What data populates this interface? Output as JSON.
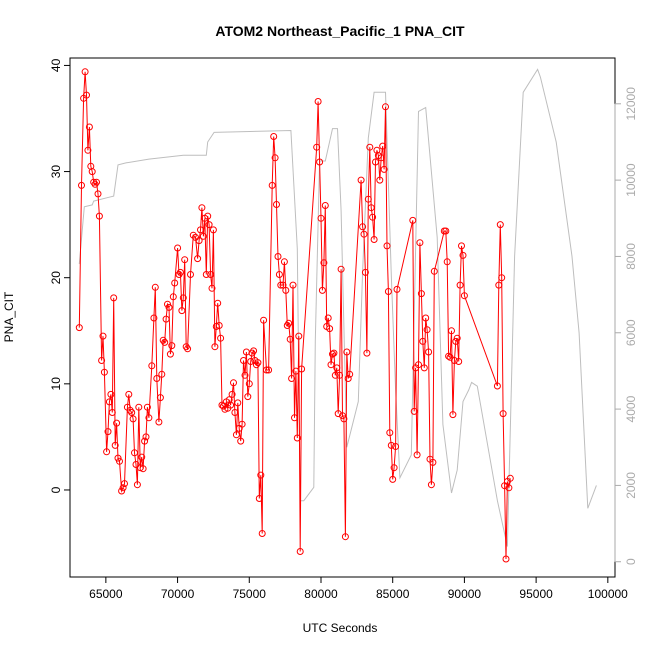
{
  "chart_data": {
    "type": "line",
    "title": "ATOM2 Northeast_Pacific_1 PNA_CIT",
    "xlabel": "UTC Seconds",
    "ylabel": "PNA_CIT",
    "xlim": [
      62500,
      100500
    ],
    "ylim": [
      -8.2,
      40.7
    ],
    "y2lim": [
      -400,
      13200
    ],
    "x_ticks": [
      65000,
      70000,
      75000,
      80000,
      85000,
      90000,
      95000,
      100000
    ],
    "x_tick_labels": [
      "65000",
      "70000",
      "75000",
      "80000",
      "85000",
      "90000",
      "95000",
      "100000"
    ],
    "y_ticks": [
      0,
      10,
      20,
      30,
      40
    ],
    "y_tick_labels": [
      "0",
      "10",
      "20",
      "30",
      "40"
    ],
    "y2_ticks": [
      0,
      2000,
      4000,
      6000,
      8000,
      10000,
      12000
    ],
    "y2_tick_labels": [
      "0",
      "2000",
      "4000",
      "6000",
      "8000",
      "10000",
      "12000"
    ],
    "colors": {
      "primary": "#ff0000",
      "secondary": "#bebebe"
    },
    "series": [
      {
        "axis": "left",
        "style": "line-points",
        "points": [
          [
            63150,
            15.3
          ],
          [
            63300,
            28.7
          ],
          [
            63450,
            36.9
          ],
          [
            63550,
            39.4
          ],
          [
            63650,
            37.2
          ],
          [
            63750,
            32.0
          ],
          [
            63850,
            34.2
          ],
          [
            63950,
            30.5
          ],
          [
            64050,
            30.0
          ],
          [
            64150,
            29.0
          ],
          [
            64250,
            28.8
          ],
          [
            64350,
            29.0
          ],
          [
            64450,
            27.9
          ],
          [
            64550,
            25.8
          ],
          [
            64700,
            12.2
          ],
          [
            64800,
            14.5
          ],
          [
            64900,
            11.1
          ],
          [
            65050,
            3.6
          ],
          [
            65150,
            5.5
          ],
          [
            65250,
            8.3
          ],
          [
            65350,
            9.0
          ],
          [
            65450,
            7.3
          ],
          [
            65550,
            18.1
          ],
          [
            65650,
            4.2
          ],
          [
            65750,
            6.3
          ],
          [
            65850,
            3.0
          ],
          [
            65950,
            2.7
          ],
          [
            66100,
            -0.1
          ],
          [
            66200,
            0.2
          ],
          [
            66300,
            0.6
          ],
          [
            66500,
            7.8
          ],
          [
            66600,
            9.0
          ],
          [
            66700,
            7.5
          ],
          [
            66800,
            7.3
          ],
          [
            66900,
            6.7
          ],
          [
            67000,
            3.5
          ],
          [
            67100,
            2.4
          ],
          [
            67200,
            0.5
          ],
          [
            67300,
            7.8
          ],
          [
            67400,
            2.1
          ],
          [
            67500,
            3.1
          ],
          [
            67600,
            2.0
          ],
          [
            67700,
            4.6
          ],
          [
            67800,
            5.0
          ],
          [
            67900,
            7.8
          ],
          [
            68000,
            6.8
          ],
          [
            68200,
            11.7
          ],
          [
            68350,
            16.2
          ],
          [
            68450,
            19.1
          ],
          [
            68550,
            10.5
          ],
          [
            68700,
            6.4
          ],
          [
            68800,
            8.7
          ],
          [
            68900,
            10.9
          ],
          [
            69000,
            14.1
          ],
          [
            69100,
            13.9
          ],
          [
            69200,
            16.1
          ],
          [
            69300,
            17.5
          ],
          [
            69400,
            17.2
          ],
          [
            69500,
            12.8
          ],
          [
            69600,
            13.6
          ],
          [
            69700,
            18.2
          ],
          [
            69800,
            19.5
          ],
          [
            70000,
            22.8
          ],
          [
            70100,
            20.3
          ],
          [
            70200,
            20.5
          ],
          [
            70300,
            16.9
          ],
          [
            70400,
            18.1
          ],
          [
            70500,
            21.7
          ],
          [
            70600,
            13.5
          ],
          [
            70700,
            13.3
          ],
          [
            70900,
            20.3
          ],
          [
            71100,
            24.0
          ],
          [
            71250,
            23.8
          ],
          [
            71400,
            21.8
          ],
          [
            71500,
            23.5
          ],
          [
            71600,
            24.5
          ],
          [
            71700,
            26.6
          ],
          [
            71800,
            23.9
          ],
          [
            71900,
            25.6
          ],
          [
            72000,
            20.3
          ],
          [
            72100,
            25.8
          ],
          [
            72200,
            25.0
          ],
          [
            72300,
            20.3
          ],
          [
            72400,
            19.0
          ],
          [
            72500,
            24.5
          ],
          [
            72600,
            13.5
          ],
          [
            72700,
            15.4
          ],
          [
            72800,
            17.6
          ],
          [
            72900,
            15.5
          ],
          [
            73000,
            14.3
          ],
          [
            73100,
            8.0
          ],
          [
            73200,
            7.9
          ],
          [
            73300,
            7.6
          ],
          [
            73400,
            8.3
          ],
          [
            73500,
            7.7
          ],
          [
            73600,
            8.5
          ],
          [
            73700,
            8.0
          ],
          [
            73800,
            9.0
          ],
          [
            73900,
            10.1
          ],
          [
            74000,
            7.3
          ],
          [
            74100,
            5.2
          ],
          [
            74200,
            8.2
          ],
          [
            74300,
            5.8
          ],
          [
            74400,
            4.6
          ],
          [
            74500,
            6.2
          ],
          [
            74600,
            12.2
          ],
          [
            74700,
            10.8
          ],
          [
            74800,
            13.0
          ],
          [
            74900,
            8.8
          ],
          [
            75000,
            10.0
          ],
          [
            75100,
            12.1
          ],
          [
            75200,
            12.9
          ],
          [
            75300,
            13.1
          ],
          [
            75400,
            12.2
          ],
          [
            75500,
            11.8
          ],
          [
            75600,
            12.0
          ],
          [
            75700,
            -0.8
          ],
          [
            75800,
            1.4
          ],
          [
            75900,
            -4.1
          ],
          [
            76000,
            16.0
          ],
          [
            76200,
            11.3
          ],
          [
            76350,
            11.3
          ],
          [
            76600,
            28.7
          ],
          [
            76700,
            33.3
          ],
          [
            76800,
            31.3
          ],
          [
            76900,
            26.9
          ],
          [
            77000,
            22.0
          ],
          [
            77100,
            20.3
          ],
          [
            77200,
            19.3
          ],
          [
            77350,
            19.3
          ],
          [
            77450,
            21.5
          ],
          [
            77550,
            18.8
          ],
          [
            77650,
            15.5
          ],
          [
            77750,
            15.7
          ],
          [
            77850,
            14.2
          ],
          [
            77950,
            10.5
          ],
          [
            78050,
            19.3
          ],
          [
            78150,
            6.8
          ],
          [
            78250,
            11.2
          ],
          [
            78350,
            4.9
          ],
          [
            78450,
            14.5
          ],
          [
            78550,
            -5.8
          ],
          [
            78650,
            11.4
          ],
          [
            79700,
            32.3
          ],
          [
            79800,
            36.6
          ],
          [
            79900,
            30.9
          ],
          [
            80000,
            25.6
          ],
          [
            80100,
            18.8
          ],
          [
            80200,
            21.4
          ],
          [
            80300,
            26.8
          ],
          [
            80400,
            15.4
          ],
          [
            80500,
            16.2
          ],
          [
            80600,
            15.2
          ],
          [
            80700,
            11.8
          ],
          [
            80800,
            12.8
          ],
          [
            80900,
            12.9
          ],
          [
            81000,
            10.8
          ],
          [
            81100,
            11.5
          ],
          [
            81200,
            7.2
          ],
          [
            81300,
            10.8
          ],
          [
            81400,
            20.8
          ],
          [
            81500,
            7.0
          ],
          [
            81600,
            6.7
          ],
          [
            81700,
            -4.4
          ],
          [
            81800,
            13.0
          ],
          [
            81900,
            10.5
          ],
          [
            82000,
            10.9
          ],
          [
            82800,
            29.2
          ],
          [
            82900,
            24.8
          ],
          [
            83000,
            24.1
          ],
          [
            83100,
            20.5
          ],
          [
            83200,
            12.9
          ],
          [
            83300,
            27.4
          ],
          [
            83400,
            32.3
          ],
          [
            83500,
            26.6
          ],
          [
            83600,
            25.7
          ],
          [
            83700,
            23.6
          ],
          [
            83800,
            30.9
          ],
          [
            83900,
            32.0
          ],
          [
            84000,
            31.5
          ],
          [
            84100,
            29.2
          ],
          [
            84200,
            31.3
          ],
          [
            84300,
            32.4
          ],
          [
            84400,
            30.2
          ],
          [
            84500,
            36.1
          ],
          [
            84600,
            23.0
          ],
          [
            84700,
            18.7
          ],
          [
            84800,
            5.4
          ],
          [
            84900,
            4.2
          ],
          [
            85000,
            1.0
          ],
          [
            85100,
            2.1
          ],
          [
            85200,
            4.1
          ],
          [
            85300,
            18.9
          ],
          [
            86400,
            25.4
          ],
          [
            86500,
            7.4
          ],
          [
            86600,
            11.5
          ],
          [
            86700,
            3.3
          ],
          [
            86800,
            11.8
          ],
          [
            86900,
            23.3
          ],
          [
            87000,
            18.5
          ],
          [
            87100,
            14.0
          ],
          [
            87200,
            11.5
          ],
          [
            87300,
            16.2
          ],
          [
            87400,
            15.1
          ],
          [
            87500,
            13.0
          ],
          [
            87600,
            2.9
          ],
          [
            87700,
            0.5
          ],
          [
            87800,
            2.6
          ],
          [
            87900,
            20.6
          ],
          [
            88600,
            24.4
          ],
          [
            88700,
            24.4
          ],
          [
            88800,
            21.5
          ],
          [
            88900,
            12.6
          ],
          [
            89000,
            12.5
          ],
          [
            89100,
            15.0
          ],
          [
            89200,
            7.1
          ],
          [
            89300,
            12.2
          ],
          [
            89400,
            14.0
          ],
          [
            89500,
            14.3
          ],
          [
            89600,
            12.1
          ],
          [
            89700,
            19.3
          ],
          [
            89800,
            23.0
          ],
          [
            89900,
            22.1
          ],
          [
            90000,
            18.3
          ],
          [
            92300,
            9.8
          ],
          [
            92400,
            19.3
          ],
          [
            92500,
            25.0
          ],
          [
            92600,
            20.0
          ],
          [
            92700,
            7.2
          ],
          [
            92800,
            0.4
          ],
          [
            92900,
            -6.5
          ],
          [
            93000,
            0.8
          ],
          [
            93100,
            0.2
          ],
          [
            93200,
            1.1
          ]
        ]
      },
      {
        "axis": "right",
        "style": "line",
        "points": [
          [
            63150,
            7800
          ],
          [
            63500,
            9300
          ],
          [
            64050,
            9350
          ],
          [
            64150,
            9450
          ],
          [
            65200,
            9550
          ],
          [
            65550,
            9580
          ],
          [
            65850,
            10400
          ],
          [
            66400,
            10450
          ],
          [
            68000,
            10550
          ],
          [
            70400,
            10650
          ],
          [
            72000,
            10650
          ],
          [
            72100,
            11000
          ],
          [
            72550,
            11250
          ],
          [
            77900,
            11300
          ],
          [
            78350,
            8200
          ],
          [
            78550,
            1600
          ],
          [
            78800,
            1600
          ],
          [
            79500,
            1950
          ],
          [
            79600,
            5800
          ],
          [
            79900,
            10500
          ],
          [
            80300,
            10500
          ],
          [
            80800,
            11350
          ],
          [
            81150,
            11350
          ],
          [
            81400,
            9200
          ],
          [
            81800,
            3000
          ],
          [
            82600,
            4200
          ],
          [
            82900,
            7600
          ],
          [
            83300,
            11100
          ],
          [
            83700,
            12300
          ],
          [
            84500,
            12300
          ],
          [
            84900,
            7500
          ],
          [
            85200,
            4500
          ],
          [
            85500,
            2200
          ],
          [
            86300,
            2800
          ],
          [
            86800,
            11800
          ],
          [
            87300,
            11900
          ],
          [
            88100,
            8500
          ],
          [
            88500,
            3600
          ],
          [
            89100,
            1800
          ],
          [
            89500,
            2400
          ],
          [
            89900,
            4200
          ],
          [
            90300,
            4500
          ],
          [
            90500,
            4700
          ],
          [
            90900,
            4600
          ],
          [
            92300,
            1600
          ],
          [
            93000,
            400
          ],
          [
            93500,
            8000
          ],
          [
            94100,
            12300
          ],
          [
            95100,
            12900
          ],
          [
            95300,
            12700
          ],
          [
            96400,
            11000
          ],
          [
            97500,
            8000
          ],
          [
            98000,
            6000
          ],
          [
            98600,
            1400
          ],
          [
            99200,
            2000
          ]
        ]
      }
    ]
  }
}
